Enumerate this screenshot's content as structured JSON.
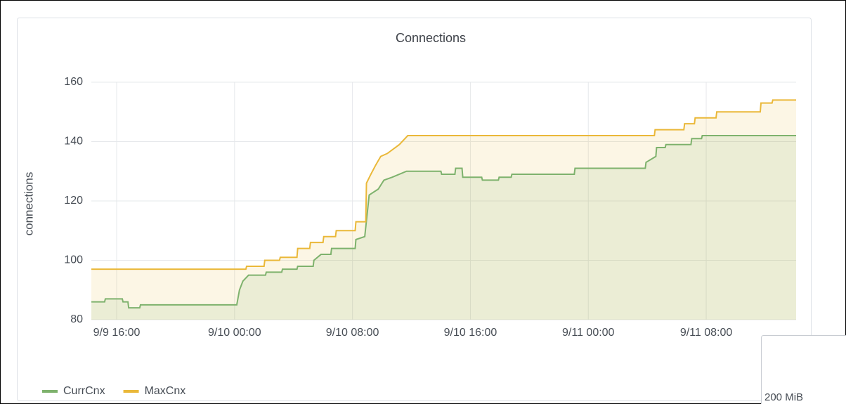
{
  "chart_data": {
    "type": "line",
    "title": "Connections",
    "ylabel": "connections",
    "ylim": [
      80,
      160
    ],
    "yticks": [
      80,
      100,
      120,
      140,
      160
    ],
    "xlim": [
      "9/9 14:17",
      "9/11 14:06"
    ],
    "xticks": [
      "9/9 16:00",
      "9/10 00:00",
      "9/10 08:00",
      "9/10 16:00",
      "9/11 00:00",
      "9/11 08:00"
    ],
    "grid": true,
    "legend": "bottom-left",
    "fill": true,
    "series": [
      {
        "name": "CurrCnx",
        "color": "#7eb26d",
        "x": [
          "9/9 14:17",
          "9/9 15:11",
          "9/9 15:14",
          "9/9 16:23",
          "9/9 16:26",
          "9/9 16:46",
          "9/9 16:49",
          "9/9 17:34",
          "9/9 17:37",
          "9/10 00:09",
          "9/10 00:20",
          "9/10 00:34",
          "9/10 00:57",
          "9/10 02:06",
          "9/10 02:09",
          "9/10 03:12",
          "9/10 03:15",
          "9/10 04:14",
          "9/10 04:17",
          "9/10 05:20",
          "9/10 05:23",
          "9/10 05:52",
          "9/10 06:32",
          "9/10 06:35",
          "9/10 08:11",
          "9/10 08:14",
          "9/10 08:50",
          "9/10 09:08",
          "9/10 09:45",
          "9/10 10:08",
          "9/10 10:42",
          "9/10 11:40",
          "9/10 14:00",
          "9/10 14:03",
          "9/10 14:57",
          "9/10 15:00",
          "9/10 15:26",
          "9/10 15:29",
          "9/10 16:46",
          "9/10 16:49",
          "9/10 17:54",
          "9/10 17:57",
          "9/10 18:46",
          "9/10 18:49",
          "9/10 23:03",
          "9/10 23:06",
          "9/11 03:52",
          "9/11 03:55",
          "9/11 04:35",
          "9/11 04:38",
          "9/11 05:13",
          "9/11 05:16",
          "9/11 06:58",
          "9/11 07:01",
          "9/11 07:41",
          "9/11 07:44",
          "9/11 14:06"
        ],
        "values": [
          86,
          86,
          87,
          87,
          86,
          86,
          84,
          84,
          85,
          85,
          90,
          93,
          95,
          95,
          96,
          96,
          97,
          97,
          98,
          98,
          100,
          102,
          102,
          104,
          104,
          107,
          108,
          122,
          124,
          127,
          128,
          130,
          130,
          129,
          129,
          131,
          131,
          128,
          128,
          127,
          127,
          128,
          128,
          129,
          129,
          131,
          131,
          133,
          135,
          138,
          138,
          139,
          139,
          141,
          141,
          142,
          142
        ]
      },
      {
        "name": "MaxCnx",
        "color": "#eab839",
        "x": [
          "9/9 14:17",
          "9/10 00:46",
          "9/10 00:49",
          "9/10 02:00",
          "9/10 02:03",
          "9/10 03:03",
          "9/10 03:06",
          "9/10 04:14",
          "9/10 04:17",
          "9/10 05:06",
          "9/10 05:09",
          "9/10 06:00",
          "9/10 06:03",
          "9/10 06:51",
          "9/10 06:54",
          "9/10 08:11",
          "9/10 08:14",
          "9/10 08:54",
          "9/10 08:57",
          "9/10 09:15",
          "9/10 09:34",
          "9/10 09:55",
          "9/10 10:22",
          "9/10 11:11",
          "9/10 11:45",
          "9/11 04:29",
          "9/11 04:32",
          "9/11 06:29",
          "9/11 06:32",
          "9/11 07:12",
          "9/11 07:15",
          "9/11 08:40",
          "9/11 08:43",
          "9/11 11:40",
          "9/11 11:43",
          "9/11 12:28",
          "9/11 12:31",
          "9/11 14:06"
        ],
        "values": [
          97,
          97,
          98,
          98,
          100,
          100,
          101,
          101,
          104,
          104,
          106,
          106,
          108,
          108,
          110,
          110,
          113,
          113,
          126,
          129,
          132,
          135,
          136,
          139,
          142,
          142,
          144,
          144,
          146,
          146,
          148,
          148,
          150,
          150,
          153,
          153,
          154,
          154
        ]
      }
    ]
  },
  "other_panel": {
    "ytick_label": "200 MiB"
  }
}
